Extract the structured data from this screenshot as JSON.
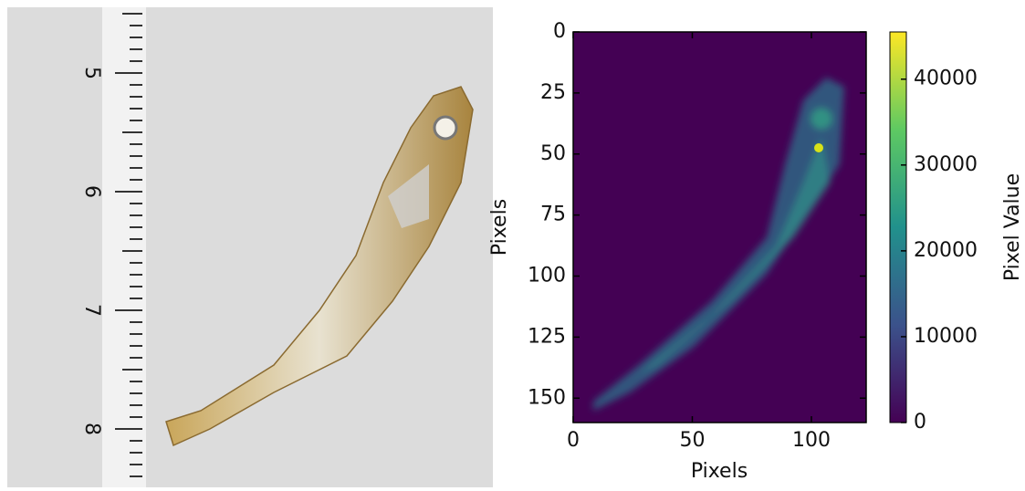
{
  "photo": {
    "ruler_labels": [
      "5",
      "6",
      "7",
      "8"
    ]
  },
  "chart_data": {
    "type": "image",
    "xlabel": "Pixels",
    "ylabel": "Pixels",
    "xlim": [
      0,
      123
    ],
    "xticks": [
      0,
      50,
      100
    ],
    "ylim": [
      0,
      160
    ],
    "yticks": [
      0,
      25,
      50,
      75,
      100,
      125,
      150
    ],
    "y_inverted": true,
    "colormap": "viridis",
    "colorbar_label": "Pixel Value",
    "clim": [
      0,
      45500
    ],
    "cticks": [
      0,
      10000,
      20000,
      30000,
      40000
    ]
  }
}
